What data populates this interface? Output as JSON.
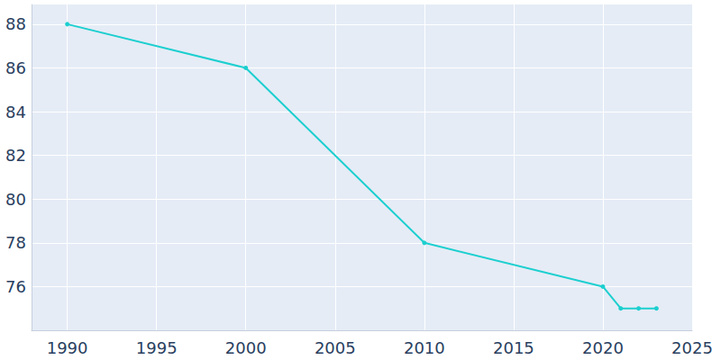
{
  "chart_data": {
    "type": "line",
    "x": [
      1990,
      2000,
      2010,
      2020,
      2021,
      2022,
      2023
    ],
    "values": [
      88,
      86,
      78,
      76,
      75,
      75,
      75
    ],
    "color": "#1ccfcf",
    "marker": "circle",
    "xlim": [
      1988,
      2025
    ],
    "xticks": [
      1990,
      1995,
      2000,
      2005,
      2010,
      2015,
      2020,
      2025
    ],
    "ylim": [
      74.0,
      88.9
    ],
    "yticks": [
      76,
      78,
      80,
      82,
      84,
      86,
      88
    ],
    "grid": true
  }
}
